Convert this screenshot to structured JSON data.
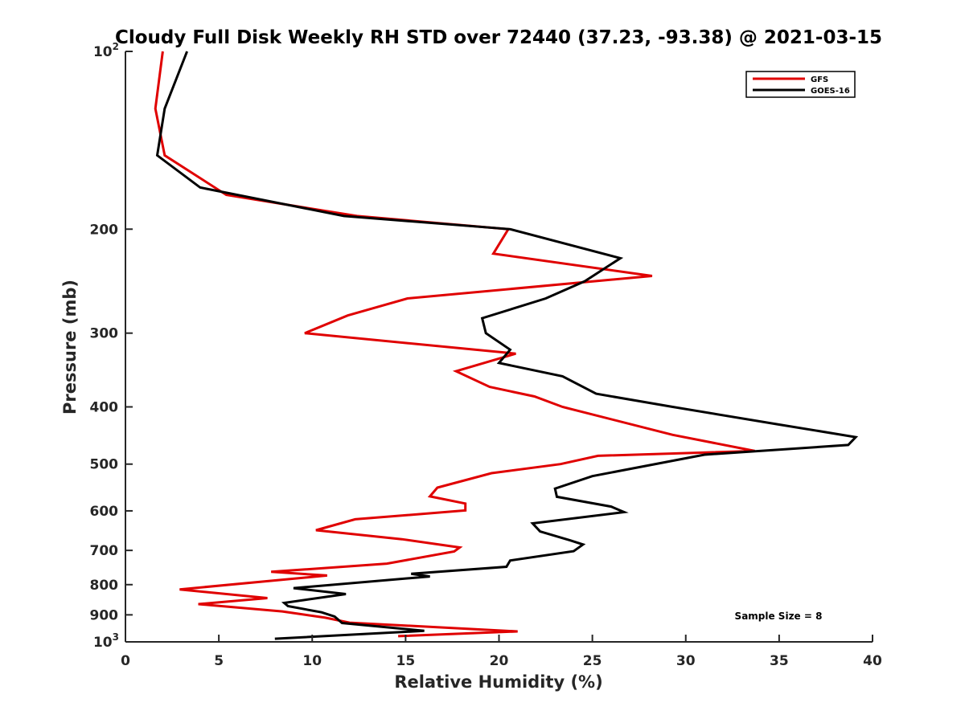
{
  "chart_data": {
    "type": "line",
    "title": "Cloudy Full Disk Weekly RH STD over 72440 (37.23, -93.38) @ 2021-03-15",
    "xlabel": "Relative Humidity (%)",
    "ylabel": "Pressure (mb)",
    "xlim": [
      0,
      40
    ],
    "ylim": [
      100,
      1000
    ],
    "y_scale": "log",
    "y_reversed": true,
    "grid": false,
    "legend_position": "top-right",
    "x_ticks": [
      "0",
      "5",
      "10",
      "15",
      "20",
      "25",
      "30",
      "35",
      "40"
    ],
    "y_ticks": [
      {
        "value": 100,
        "base": "10",
        "exp": "2",
        "label": ""
      },
      {
        "value": 200,
        "label": "200"
      },
      {
        "value": 300,
        "label": "300"
      },
      {
        "value": 400,
        "label": "400"
      },
      {
        "value": 500,
        "label": "500"
      },
      {
        "value": 600,
        "label": "600"
      },
      {
        "value": 700,
        "label": "700"
      },
      {
        "value": 800,
        "label": "800"
      },
      {
        "value": 900,
        "label": "900"
      },
      {
        "value": 1000,
        "base": "10",
        "exp": "3",
        "label": ""
      }
    ],
    "annotation": "Sample Size = 8",
    "series": [
      {
        "name": "GFS",
        "color": "#e00000",
        "points": [
          [
            2.0,
            100
          ],
          [
            1.6,
            125
          ],
          [
            2.1,
            150
          ],
          [
            5.4,
            175
          ],
          [
            12.4,
            190
          ],
          [
            20.5,
            200
          ],
          [
            19.7,
            220
          ],
          [
            28.2,
            240
          ],
          [
            15.1,
            262
          ],
          [
            11.9,
            280
          ],
          [
            9.6,
            300
          ],
          [
            20.9,
            325
          ],
          [
            17.7,
            348
          ],
          [
            19.5,
            370
          ],
          [
            21.9,
            384
          ],
          [
            23.4,
            400
          ],
          [
            29.3,
            446
          ],
          [
            33.7,
            475
          ],
          [
            25.3,
            484
          ],
          [
            23.3,
            500
          ],
          [
            19.6,
            518
          ],
          [
            16.7,
            548
          ],
          [
            16.3,
            567
          ],
          [
            18.2,
            583
          ],
          [
            18.2,
            599
          ],
          [
            12.3,
            620
          ],
          [
            10.2,
            647
          ],
          [
            14.8,
            670
          ],
          [
            17.9,
            692
          ],
          [
            17.6,
            703
          ],
          [
            14.0,
            737
          ],
          [
            7.8,
            761
          ],
          [
            10.8,
            772
          ],
          [
            2.9,
            815
          ],
          [
            7.6,
            843
          ],
          [
            3.9,
            863
          ],
          [
            8.4,
            888
          ],
          [
            10.7,
            910
          ],
          [
            12.0,
            928
          ],
          [
            21.0,
            960
          ],
          [
            14.6,
            978
          ]
        ]
      },
      {
        "name": "GOES-16",
        "color": "#000000",
        "points": [
          [
            3.3,
            100
          ],
          [
            2.1,
            125
          ],
          [
            1.7,
            150
          ],
          [
            4.0,
            170
          ],
          [
            11.7,
            190
          ],
          [
            20.6,
            200
          ],
          [
            26.5,
            224
          ],
          [
            24.6,
            245
          ],
          [
            22.5,
            262
          ],
          [
            19.1,
            283
          ],
          [
            19.3,
            300
          ],
          [
            20.6,
            320
          ],
          [
            20.0,
            337
          ],
          [
            23.4,
            355
          ],
          [
            25.2,
            380
          ],
          [
            29.3,
            400
          ],
          [
            34.9,
            428
          ],
          [
            39.1,
            450
          ],
          [
            38.7,
            464
          ],
          [
            31.0,
            482
          ],
          [
            25.0,
            524
          ],
          [
            23.0,
            550
          ],
          [
            23.1,
            568
          ],
          [
            26.0,
            590
          ],
          [
            26.7,
            603
          ],
          [
            21.8,
            630
          ],
          [
            22.2,
            650
          ],
          [
            23.8,
            673
          ],
          [
            24.5,
            684
          ],
          [
            24.0,
            702
          ],
          [
            20.6,
            728
          ],
          [
            20.4,
            746
          ],
          [
            15.3,
            767
          ],
          [
            16.3,
            775
          ],
          [
            9.0,
            811
          ],
          [
            11.8,
            830
          ],
          [
            8.5,
            859
          ],
          [
            8.7,
            870
          ],
          [
            10.5,
            891
          ],
          [
            11.2,
            906
          ],
          [
            11.6,
            929
          ],
          [
            16.0,
            958
          ],
          [
            8.0,
            988
          ]
        ]
      }
    ]
  }
}
